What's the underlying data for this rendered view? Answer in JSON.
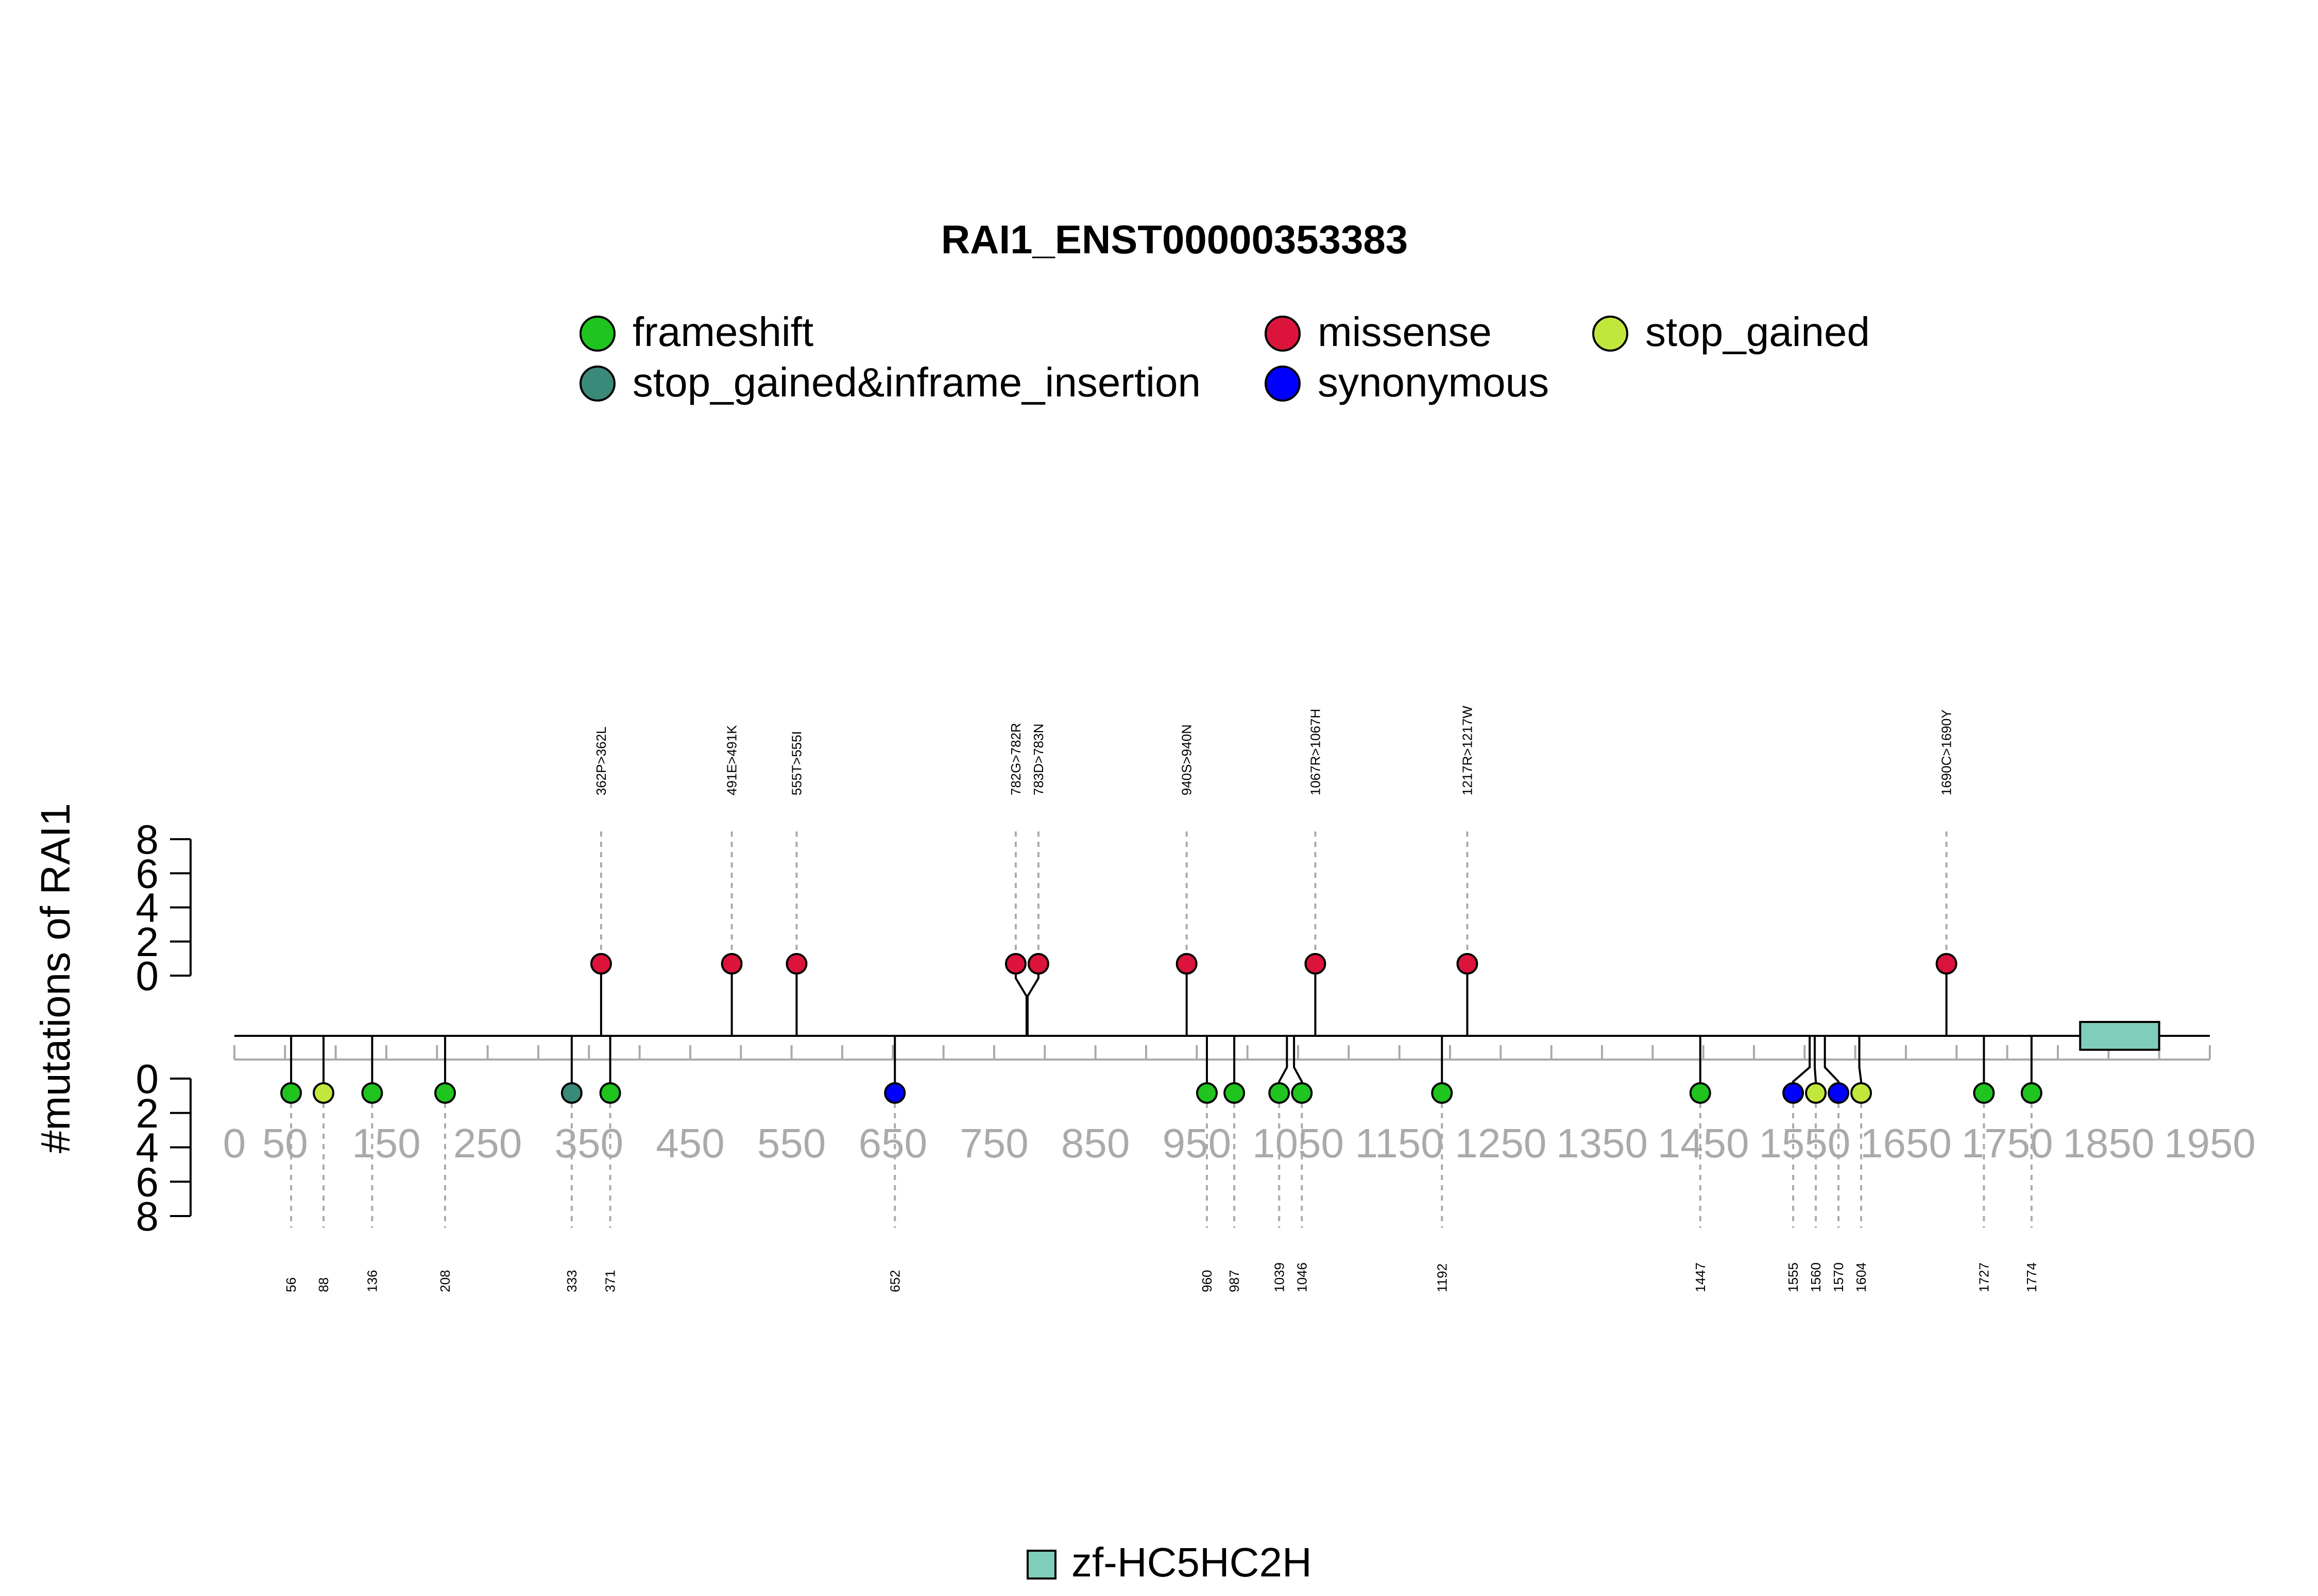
{
  "chart_data": {
    "type": "lollipop",
    "title": "RAI1_ENST00000353383",
    "ylabel": "#mutations of RAI1",
    "x_ticks": [
      0,
      50,
      150,
      250,
      350,
      450,
      550,
      650,
      750,
      850,
      950,
      1050,
      1150,
      1250,
      1350,
      1450,
      1550,
      1650,
      1750,
      1850,
      1950
    ],
    "x_range": [
      0,
      1950
    ],
    "y_ticks": [
      0,
      2,
      4,
      6,
      8
    ],
    "y_range": [
      0,
      8
    ],
    "legend": [
      {
        "label": "frameshift",
        "color": "#1FC41F"
      },
      {
        "label": "missense",
        "color": "#DC143C"
      },
      {
        "label": "stop_gained",
        "color": "#C2E73C"
      },
      {
        "label": "stop_gained&inframe_insertion",
        "color": "#3A8A7A"
      },
      {
        "label": "synonymous",
        "color": "#0000FF"
      }
    ],
    "upper_mutations": [
      {
        "pos": 362,
        "label": "362P>362L",
        "type": "missense",
        "count": 1
      },
      {
        "pos": 491,
        "label": "491E>491K",
        "type": "missense",
        "count": 1
      },
      {
        "pos": 555,
        "label": "555T>555I",
        "type": "missense",
        "count": 1
      },
      {
        "pos": 782,
        "label": "782G>782R",
        "type": "missense",
        "count": 1
      },
      {
        "pos": 783,
        "label": "783D>783N",
        "type": "missense",
        "count": 1
      },
      {
        "pos": 940,
        "label": "940S>940N",
        "type": "missense",
        "count": 1
      },
      {
        "pos": 1067,
        "label": "1067R>1067H",
        "type": "missense",
        "count": 1
      },
      {
        "pos": 1217,
        "label": "1217R>1217W",
        "type": "missense",
        "count": 1
      },
      {
        "pos": 1690,
        "label": "1690C>1690Y",
        "type": "missense",
        "count": 1
      }
    ],
    "lower_mutations": [
      {
        "pos": 56,
        "label": "56",
        "type": "frameshift",
        "count": 1
      },
      {
        "pos": 88,
        "label": "88",
        "type": "stop_gained",
        "count": 1
      },
      {
        "pos": 136,
        "label": "136",
        "type": "frameshift",
        "count": 1
      },
      {
        "pos": 208,
        "label": "208",
        "type": "frameshift",
        "count": 1
      },
      {
        "pos": 333,
        "label": "333",
        "type": "stop_gained&inframe_insertion",
        "count": 1
      },
      {
        "pos": 371,
        "label": "371",
        "type": "frameshift",
        "count": 1
      },
      {
        "pos": 652,
        "label": "652",
        "type": "synonymous",
        "count": 1
      },
      {
        "pos": 960,
        "label": "960",
        "type": "frameshift",
        "count": 1
      },
      {
        "pos": 987,
        "label": "987",
        "type": "frameshift",
        "count": 1
      },
      {
        "pos": 1039,
        "label": "1039",
        "type": "frameshift",
        "count": 1
      },
      {
        "pos": 1046,
        "label": "1046",
        "type": "frameshift",
        "count": 1
      },
      {
        "pos": 1192,
        "label": "1192",
        "type": "frameshift",
        "count": 1
      },
      {
        "pos": 1447,
        "label": "1447",
        "type": "frameshift",
        "count": 1
      },
      {
        "pos": 1555,
        "label": "1555",
        "type": "synonymous",
        "count": 1
      },
      {
        "pos": 1560,
        "label": "1560",
        "type": "stop_gained",
        "count": 1
      },
      {
        "pos": 1570,
        "label": "1570",
        "type": "synonymous",
        "count": 1
      },
      {
        "pos": 1604,
        "label": "1604",
        "type": "stop_gained",
        "count": 1
      },
      {
        "pos": 1727,
        "label": "1727",
        "type": "frameshift",
        "count": 1
      },
      {
        "pos": 1774,
        "label": "1774",
        "type": "frameshift",
        "count": 1
      }
    ],
    "domains": [
      {
        "name": "zf-HC5HC2H",
        "start": 1822,
        "end": 1900,
        "color": "#7FCDBB"
      }
    ]
  }
}
